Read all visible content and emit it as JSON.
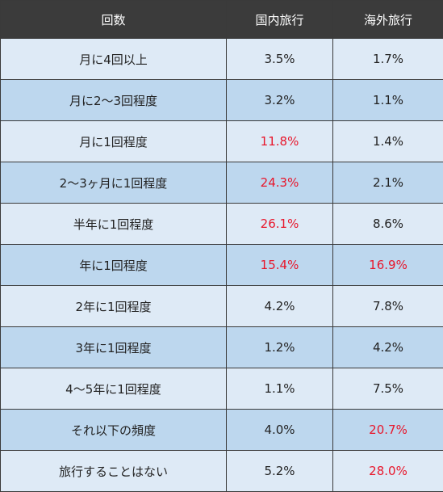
{
  "headers": {
    "frequency": "回数",
    "domestic": "国内旅行",
    "overseas": "海外旅行"
  },
  "highlight_color": "#e8162b",
  "rows": [
    {
      "frequency": "月に4回以上",
      "domestic": "3.5%",
      "overseas": "1.7%",
      "domestic_highlight": false,
      "overseas_highlight": false
    },
    {
      "frequency": "月に2〜3回程度",
      "domestic": "3.2%",
      "overseas": "1.1%",
      "domestic_highlight": false,
      "overseas_highlight": false
    },
    {
      "frequency": "月に1回程度",
      "domestic": "11.8%",
      "overseas": "1.4%",
      "domestic_highlight": true,
      "overseas_highlight": false
    },
    {
      "frequency": "2〜3ヶ月に1回程度",
      "domestic": "24.3%",
      "overseas": "2.1%",
      "domestic_highlight": true,
      "overseas_highlight": false
    },
    {
      "frequency": "半年に1回程度",
      "domestic": "26.1%",
      "overseas": "8.6%",
      "domestic_highlight": true,
      "overseas_highlight": false
    },
    {
      "frequency": "年に1回程度",
      "domestic": "15.4%",
      "overseas": "16.9%",
      "domestic_highlight": true,
      "overseas_highlight": true
    },
    {
      "frequency": "2年に1回程度",
      "domestic": "4.2%",
      "overseas": "7.8%",
      "domestic_highlight": false,
      "overseas_highlight": false
    },
    {
      "frequency": "3年に1回程度",
      "domestic": "1.2%",
      "overseas": "4.2%",
      "domestic_highlight": false,
      "overseas_highlight": false
    },
    {
      "frequency": "4〜5年に1回程度",
      "domestic": "1.1%",
      "overseas": "7.5%",
      "domestic_highlight": false,
      "overseas_highlight": false
    },
    {
      "frequency": "それ以下の頻度",
      "domestic": "4.0%",
      "overseas": "20.7%",
      "domestic_highlight": false,
      "overseas_highlight": true
    },
    {
      "frequency": "旅行することはない",
      "domestic": "5.2%",
      "overseas": "28.0%",
      "domestic_highlight": false,
      "overseas_highlight": true
    }
  ]
}
